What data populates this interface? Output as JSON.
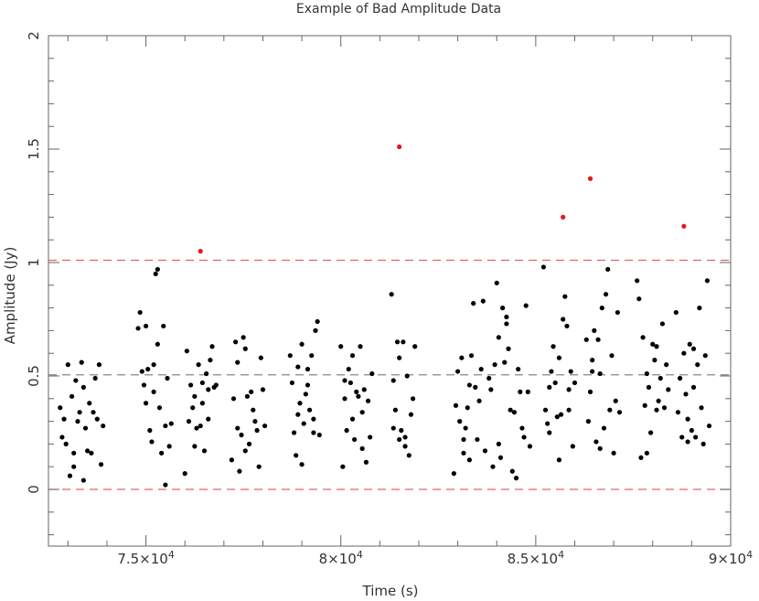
{
  "chart_data": {
    "type": "scatter",
    "title": "Example of Bad Amplitude Data",
    "xlabel": "Time (s)",
    "ylabel": "Amplitude (Jy)",
    "xlim": [
      72500,
      90000
    ],
    "ylim": [
      -0.25,
      2.0
    ],
    "x_major_ticks": [
      75000,
      80000,
      85000,
      90000
    ],
    "x_tick_labels": [
      {
        "mantissa": "7.5",
        "exp": "4"
      },
      {
        "mantissa": "8",
        "exp": "4"
      },
      {
        "mantissa": "8.5",
        "exp": "4"
      },
      {
        "mantissa": "9",
        "exp": "4"
      }
    ],
    "y_major_ticks": [
      0,
      0.5,
      1,
      1.5,
      2
    ],
    "y_tick_labels": [
      "0",
      "0.5",
      "1",
      "1.5",
      "2"
    ],
    "grid": false,
    "colors": {
      "good": "#000000",
      "bad": "#e8151b",
      "mean": "#888888",
      "limit": "#e06666"
    },
    "reference_lines": [
      {
        "y": 0.505,
        "color": "#888888",
        "style": "dashed"
      },
      {
        "y": 1.01,
        "color": "#e06666",
        "style": "dashed"
      },
      {
        "y": 0.0,
        "color": "#e06666",
        "style": "dashed"
      }
    ],
    "series": [
      {
        "status": "bad",
        "points": [
          [
            76400,
            1.05
          ],
          [
            81500,
            1.51
          ],
          [
            85700,
            1.2
          ],
          [
            86400,
            1.37
          ],
          [
            88800,
            1.16
          ]
        ]
      },
      {
        "status": "good",
        "points": [
          [
            72800,
            0.36
          ],
          [
            72850,
            0.23
          ],
          [
            72900,
            0.31
          ],
          [
            72950,
            0.2
          ],
          [
            73000,
            0.55
          ],
          [
            73050,
            0.06
          ],
          [
            73100,
            0.41
          ],
          [
            73150,
            0.16
          ],
          [
            73200,
            0.48
          ],
          [
            73250,
            0.3
          ],
          [
            73300,
            0.34
          ],
          [
            73350,
            0.56
          ],
          [
            73400,
            0.45
          ],
          [
            73450,
            0.27
          ],
          [
            73500,
            0.17
          ],
          [
            73550,
            0.38
          ],
          [
            73600,
            0.16
          ],
          [
            73650,
            0.34
          ],
          [
            73700,
            0.49
          ],
          [
            73750,
            0.31
          ],
          [
            73800,
            0.55
          ],
          [
            73850,
            0.11
          ],
          [
            73900,
            0.28
          ],
          [
            73150,
            0.1
          ],
          [
            73400,
            0.04
          ],
          [
            74800,
            0.71
          ],
          [
            74850,
            0.78
          ],
          [
            74900,
            0.52
          ],
          [
            74950,
            0.46
          ],
          [
            75000,
            0.38
          ],
          [
            75050,
            0.53
          ],
          [
            75100,
            0.26
          ],
          [
            75150,
            0.21
          ],
          [
            75200,
            0.55
          ],
          [
            75250,
            0.95
          ],
          [
            75300,
            0.97
          ],
          [
            75350,
            0.36
          ],
          [
            75400,
            0.16
          ],
          [
            75450,
            0.72
          ],
          [
            75500,
            0.28
          ],
          [
            75550,
            0.49
          ],
          [
            75600,
            0.19
          ],
          [
            75650,
            0.29
          ],
          [
            75300,
            0.64
          ],
          [
            75500,
            0.02
          ],
          [
            75200,
            0.43
          ],
          [
            75000,
            0.72
          ],
          [
            76000,
            0.07
          ],
          [
            76050,
            0.61
          ],
          [
            76100,
            0.3
          ],
          [
            76150,
            0.46
          ],
          [
            76200,
            0.36
          ],
          [
            76250,
            0.41
          ],
          [
            76300,
            0.27
          ],
          [
            76350,
            0.55
          ],
          [
            76400,
            0.28
          ],
          [
            76450,
            0.47
          ],
          [
            76500,
            0.17
          ],
          [
            76550,
            0.51
          ],
          [
            76600,
            0.44
          ],
          [
            76650,
            0.57
          ],
          [
            76700,
            0.63
          ],
          [
            76750,
            0.45
          ],
          [
            76800,
            0.46
          ],
          [
            76250,
            0.19
          ],
          [
            76450,
            0.38
          ],
          [
            76600,
            0.31
          ],
          [
            77200,
            0.13
          ],
          [
            77250,
            0.4
          ],
          [
            77300,
            0.65
          ],
          [
            77350,
            0.27
          ],
          [
            77400,
            0.08
          ],
          [
            77450,
            0.24
          ],
          [
            77500,
            0.67
          ],
          [
            77550,
            0.17
          ],
          [
            77600,
            0.41
          ],
          [
            77650,
            0.2
          ],
          [
            77700,
            0.43
          ],
          [
            77750,
            0.35
          ],
          [
            77800,
            0.3
          ],
          [
            77850,
            0.26
          ],
          [
            77900,
            0.1
          ],
          [
            77950,
            0.58
          ],
          [
            78000,
            0.44
          ],
          [
            78050,
            0.28
          ],
          [
            77550,
            0.62
          ],
          [
            77350,
            0.56
          ],
          [
            78700,
            0.59
          ],
          [
            78750,
            0.47
          ],
          [
            78800,
            0.25
          ],
          [
            78850,
            0.15
          ],
          [
            78900,
            0.54
          ],
          [
            78950,
            0.38
          ],
          [
            79000,
            0.64
          ],
          [
            79050,
            0.29
          ],
          [
            79100,
            0.42
          ],
          [
            79150,
            0.53
          ],
          [
            79200,
            0.35
          ],
          [
            79250,
            0.59
          ],
          [
            79300,
            0.25
          ],
          [
            79350,
            0.7
          ],
          [
            79400,
            0.74
          ],
          [
            79450,
            0.24
          ],
          [
            79000,
            0.11
          ],
          [
            78900,
            0.33
          ],
          [
            79150,
            0.46
          ],
          [
            79300,
            0.31
          ],
          [
            80000,
            0.63
          ],
          [
            80050,
            0.1
          ],
          [
            80100,
            0.4
          ],
          [
            80150,
            0.26
          ],
          [
            80200,
            0.53
          ],
          [
            80250,
            0.47
          ],
          [
            80300,
            0.59
          ],
          [
            80350,
            0.22
          ],
          [
            80400,
            0.43
          ],
          [
            80450,
            0.41
          ],
          [
            80500,
            0.63
          ],
          [
            80550,
            0.34
          ],
          [
            80600,
            0.44
          ],
          [
            80650,
            0.12
          ],
          [
            80700,
            0.39
          ],
          [
            80750,
            0.23
          ],
          [
            80800,
            0.51
          ],
          [
            80300,
            0.31
          ],
          [
            80550,
            0.18
          ],
          [
            80100,
            0.48
          ],
          [
            81300,
            0.86
          ],
          [
            81350,
            0.48
          ],
          [
            81400,
            0.35
          ],
          [
            81450,
            0.65
          ],
          [
            81500,
            0.22
          ],
          [
            81550,
            0.26
          ],
          [
            81600,
            0.65
          ],
          [
            81650,
            0.19
          ],
          [
            81700,
            0.5
          ],
          [
            81750,
            0.15
          ],
          [
            81800,
            0.33
          ],
          [
            81850,
            0.4
          ],
          [
            81900,
            0.63
          ],
          [
            81500,
            0.58
          ],
          [
            81650,
            0.23
          ],
          [
            81350,
            0.27
          ],
          [
            82900,
            0.07
          ],
          [
            82950,
            0.37
          ],
          [
            83000,
            0.52
          ],
          [
            83050,
            0.3
          ],
          [
            83100,
            0.58
          ],
          [
            83150,
            0.16
          ],
          [
            83200,
            0.27
          ],
          [
            83250,
            0.36
          ],
          [
            83300,
            0.13
          ],
          [
            83350,
            0.59
          ],
          [
            83400,
            0.82
          ],
          [
            83450,
            0.45
          ],
          [
            83500,
            0.22
          ],
          [
            83550,
            0.39
          ],
          [
            83600,
            0.53
          ],
          [
            83650,
            0.83
          ],
          [
            83700,
            0.17
          ],
          [
            83300,
            0.46
          ],
          [
            83150,
            0.22
          ],
          [
            83800,
            0.49
          ],
          [
            83850,
            0.44
          ],
          [
            83900,
            0.1
          ],
          [
            83950,
            0.55
          ],
          [
            84000,
            0.91
          ],
          [
            84050,
            0.2
          ],
          [
            84100,
            0.14
          ],
          [
            84150,
            0.8
          ],
          [
            84200,
            0.56
          ],
          [
            84250,
            0.73
          ],
          [
            84300,
            0.62
          ],
          [
            84350,
            0.35
          ],
          [
            84400,
            0.08
          ],
          [
            84450,
            0.34
          ],
          [
            84500,
            0.05
          ],
          [
            84550,
            0.53
          ],
          [
            84600,
            0.43
          ],
          [
            84650,
            0.27
          ],
          [
            84700,
            0.23
          ],
          [
            84750,
            0.81
          ],
          [
            84800,
            0.43
          ],
          [
            84850,
            0.19
          ],
          [
            84250,
            0.76
          ],
          [
            84050,
            0.67
          ],
          [
            85200,
            0.98
          ],
          [
            85250,
            0.35
          ],
          [
            85300,
            0.29
          ],
          [
            85350,
            0.45
          ],
          [
            85400,
            0.52
          ],
          [
            85450,
            0.63
          ],
          [
            85500,
            0.47
          ],
          [
            85550,
            0.32
          ],
          [
            85600,
            0.13
          ],
          [
            85650,
            0.33
          ],
          [
            85700,
            0.75
          ],
          [
            85750,
            0.85
          ],
          [
            85800,
            0.72
          ],
          [
            85850,
            0.44
          ],
          [
            85900,
            0.52
          ],
          [
            85950,
            0.19
          ],
          [
            86000,
            0.47
          ],
          [
            85350,
            0.25
          ],
          [
            85600,
            0.58
          ],
          [
            85850,
            0.35
          ],
          [
            86300,
            0.66
          ],
          [
            86350,
            0.3
          ],
          [
            86400,
            0.43
          ],
          [
            86450,
            0.52
          ],
          [
            86500,
            0.7
          ],
          [
            86550,
            0.21
          ],
          [
            86600,
            0.66
          ],
          [
            86650,
            0.18
          ],
          [
            86700,
            0.8
          ],
          [
            86750,
            0.27
          ],
          [
            86800,
            0.86
          ],
          [
            86850,
            0.97
          ],
          [
            86900,
            0.35
          ],
          [
            86950,
            0.59
          ],
          [
            87000,
            0.16
          ],
          [
            87050,
            0.39
          ],
          [
            87100,
            0.78
          ],
          [
            87150,
            0.34
          ],
          [
            86650,
            0.51
          ],
          [
            86450,
            0.57
          ],
          [
            87600,
            0.92
          ],
          [
            87650,
            0.84
          ],
          [
            87700,
            0.14
          ],
          [
            87750,
            0.67
          ],
          [
            87800,
            0.37
          ],
          [
            87850,
            0.51
          ],
          [
            87900,
            0.45
          ],
          [
            87950,
            0.25
          ],
          [
            88000,
            0.64
          ],
          [
            88050,
            0.57
          ],
          [
            88100,
            0.35
          ],
          [
            88150,
            0.39
          ],
          [
            88200,
            0.49
          ],
          [
            88250,
            0.73
          ],
          [
            88300,
            0.36
          ],
          [
            88350,
            0.55
          ],
          [
            88400,
            0.44
          ],
          [
            87850,
            0.16
          ],
          [
            88100,
            0.63
          ],
          [
            88600,
            0.78
          ],
          [
            88650,
            0.34
          ],
          [
            88700,
            0.49
          ],
          [
            88750,
            0.23
          ],
          [
            88800,
            0.6
          ],
          [
            88850,
            0.42
          ],
          [
            88900,
            0.31
          ],
          [
            88950,
            0.64
          ],
          [
            89000,
            0.26
          ],
          [
            89050,
            0.45
          ],
          [
            89100,
            0.23
          ],
          [
            89150,
            0.55
          ],
          [
            89200,
            0.8
          ],
          [
            89250,
            0.36
          ],
          [
            89300,
            0.2
          ],
          [
            89350,
            0.59
          ],
          [
            89400,
            0.92
          ],
          [
            89450,
            0.28
          ],
          [
            88900,
            0.21
          ],
          [
            89050,
            0.62
          ]
        ]
      }
    ]
  }
}
